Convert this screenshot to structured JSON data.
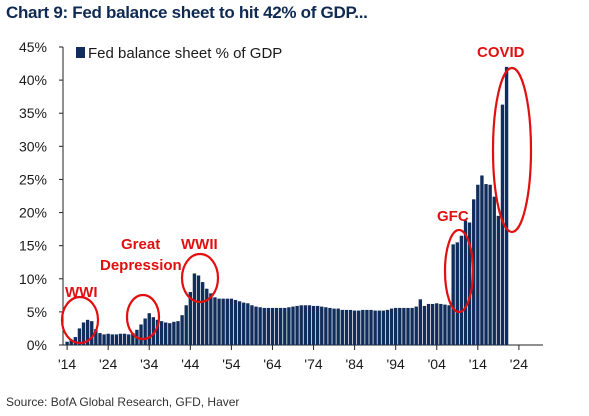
{
  "title": "Chart 9: Fed balance sheet to hit 42% of GDP...",
  "source": "Source: BofA Global Research, GFD, Haver",
  "colors": {
    "bar": "#102d5c",
    "annotation": "#e01010",
    "axis": "#222222",
    "title": "#0f2a52"
  },
  "chart_data": {
    "type": "bar",
    "ylim": [
      0,
      45
    ],
    "xlim": [
      1913,
      2025
    ],
    "y_ticks": [
      0,
      5,
      10,
      15,
      20,
      25,
      30,
      35,
      40,
      45
    ],
    "y_tick_labels": [
      "0%",
      "5%",
      "10%",
      "15%",
      "20%",
      "25%",
      "30%",
      "35%",
      "40%",
      "45%"
    ],
    "x_ticks": [
      1914,
      1924,
      1934,
      1944,
      1954,
      1964,
      1974,
      1984,
      1994,
      2004,
      2014,
      2024
    ],
    "x_tick_labels": [
      "'14",
      "'24",
      "'34",
      "'44",
      "'54",
      "'64",
      "'74",
      "'84",
      "'94",
      "'04",
      "'14",
      "'24"
    ],
    "grid": false,
    "legend_position": "top-left",
    "series": [
      {
        "name": "Fed balance sheet % of GDP",
        "x": [
          1914,
          1915,
          1916,
          1917,
          1918,
          1919,
          1920,
          1921,
          1922,
          1923,
          1924,
          1925,
          1926,
          1927,
          1928,
          1929,
          1930,
          1931,
          1932,
          1933,
          1934,
          1935,
          1936,
          1937,
          1938,
          1939,
          1940,
          1941,
          1942,
          1943,
          1944,
          1945,
          1946,
          1947,
          1948,
          1949,
          1950,
          1951,
          1952,
          1953,
          1954,
          1955,
          1956,
          1957,
          1958,
          1959,
          1960,
          1961,
          1962,
          1963,
          1964,
          1965,
          1966,
          1967,
          1968,
          1969,
          1970,
          1971,
          1972,
          1973,
          1974,
          1975,
          1976,
          1977,
          1978,
          1979,
          1980,
          1981,
          1982,
          1983,
          1984,
          1985,
          1986,
          1987,
          1988,
          1989,
          1990,
          1991,
          1992,
          1993,
          1994,
          1995,
          1996,
          1997,
          1998,
          1999,
          2000,
          2001,
          2002,
          2003,
          2004,
          2005,
          2006,
          2007,
          2008,
          2009,
          2010,
          2011,
          2012,
          2013,
          2014,
          2015,
          2016,
          2017,
          2018,
          2019,
          2020,
          2021
        ],
        "values": [
          0.5,
          0.8,
          1.2,
          2.5,
          3.4,
          3.8,
          3.6,
          2.4,
          1.8,
          1.6,
          1.7,
          1.6,
          1.6,
          1.7,
          1.7,
          1.6,
          1.8,
          2.3,
          3.1,
          4.0,
          4.8,
          4.2,
          3.8,
          3.6,
          3.4,
          3.3,
          3.5,
          3.6,
          4.5,
          6.0,
          8.0,
          10.8,
          10.5,
          9.5,
          8.5,
          7.8,
          7.2,
          7.0,
          7.0,
          7.0,
          7.0,
          6.8,
          6.6,
          6.4,
          6.3,
          6.0,
          5.8,
          5.7,
          5.6,
          5.6,
          5.6,
          5.6,
          5.6,
          5.6,
          5.7,
          5.8,
          5.9,
          6.0,
          6.0,
          6.0,
          5.9,
          5.9,
          5.8,
          5.7,
          5.6,
          5.5,
          5.5,
          5.3,
          5.3,
          5.3,
          5.2,
          5.2,
          5.3,
          5.3,
          5.3,
          5.2,
          5.2,
          5.2,
          5.3,
          5.5,
          5.6,
          5.6,
          5.6,
          5.6,
          5.6,
          5.8,
          6.9,
          5.9,
          6.2,
          6.2,
          6.3,
          6.2,
          6.1,
          6.0,
          15.2,
          15.5,
          16.5,
          18.8,
          18.5,
          22.0,
          24.2,
          25.6,
          24.3,
          24.2,
          22.4,
          19.5,
          36.3,
          42.0
        ]
      }
    ],
    "annotations": [
      {
        "label": "WWI"
      },
      {
        "label": "Great"
      },
      {
        "label": "Depression"
      },
      {
        "label": "WWII"
      },
      {
        "label": "GFC"
      },
      {
        "label": "COVID"
      }
    ]
  }
}
